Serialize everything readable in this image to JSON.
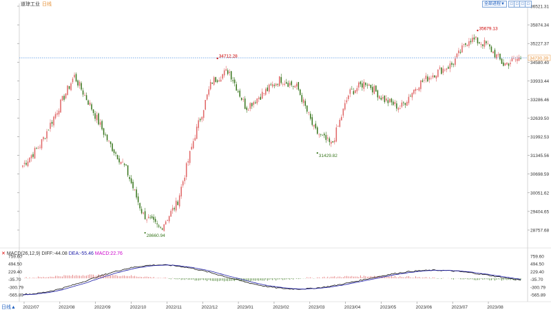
{
  "header": {
    "title": "道琼工业",
    "period_tag": "日线",
    "adjust_button": "全部进程▼",
    "toggle_buttons": [
      "□",
      "□",
      "□",
      "□"
    ]
  },
  "footer": {
    "period_label": "日线▲"
  },
  "indicator": {
    "label": "MACD(26,12,9)",
    "diff_text": "DIFF:-44.08",
    "dea_text": "DEA:-55.46",
    "macd_text": "MACD:22.76"
  },
  "colors": {
    "up": "#e06666",
    "down": "#38761d",
    "diff_line": "#111111",
    "dea_line": "#1c1ca8",
    "macd_label": "#cc00cc",
    "last_price_line": "#4a90e2",
    "high_annotation": "#cc0000",
    "low_annotation": "#38761d"
  },
  "chart_data": [
    {
      "type": "candlestick",
      "x_ticks": [
        "2022/07",
        "2022/08",
        "2022/09",
        "2022/10",
        "2022/11",
        "2022/12",
        "2023/01",
        "2023/02",
        "2023/03",
        "2023/04",
        "2023/05",
        "2023/06",
        "2023/07",
        "2023/08"
      ],
      "y_ticks": [
        "36521.31",
        "35874.34",
        "35227.37",
        "34580.40",
        "33933.44",
        "33286.46",
        "32639.50",
        "31992.53",
        "31345.56",
        "30698.59",
        "30051.62",
        "29404.65",
        "28757.68"
      ],
      "ylim": [
        28757.68,
        36521.31
      ],
      "last_price": "34730.39",
      "annotations": [
        {
          "label": "34712.28",
          "x": "2022/12",
          "y": 34712.28
        },
        {
          "label": "28660.94",
          "x": "2022/10",
          "y": 28660.94
        },
        {
          "label": "31429.82",
          "x": "2023/03",
          "y": 31429.82
        },
        {
          "label": "35679.13",
          "x": "2023/08",
          "y": 35679.13
        }
      ],
      "anchors": [
        {
          "x": "2022/07",
          "y": 31000
        },
        {
          "x": "2022/07",
          "y": 31700
        },
        {
          "x": "2022/08",
          "y": 32900
        },
        {
          "x": "2022/08",
          "y": 34100
        },
        {
          "x": "2022/08",
          "y": 33000
        },
        {
          "x": "2022/09",
          "y": 31800
        },
        {
          "x": "2022/09",
          "y": 30900
        },
        {
          "x": "2022/09",
          "y": 29300
        },
        {
          "x": "2022/10",
          "y": 28800
        },
        {
          "x": "2022/10",
          "y": 29700
        },
        {
          "x": "2022/11",
          "y": 32000
        },
        {
          "x": "2022/11",
          "y": 33900
        },
        {
          "x": "2022/12",
          "y": 34300
        },
        {
          "x": "2022/12",
          "y": 33000
        },
        {
          "x": "2023/01",
          "y": 33500
        },
        {
          "x": "2023/02",
          "y": 34000
        },
        {
          "x": "2023/02",
          "y": 33700
        },
        {
          "x": "2023/03",
          "y": 32200
        },
        {
          "x": "2023/03",
          "y": 31700
        },
        {
          "x": "2023/04",
          "y": 33500
        },
        {
          "x": "2023/04",
          "y": 33900
        },
        {
          "x": "2023/05",
          "y": 33300
        },
        {
          "x": "2023/05",
          "y": 33000
        },
        {
          "x": "2023/06",
          "y": 33800
        },
        {
          "x": "2023/06",
          "y": 34200
        },
        {
          "x": "2023/07",
          "y": 34500
        },
        {
          "x": "2023/07",
          "y": 35400
        },
        {
          "x": "2023/08",
          "y": 35200
        },
        {
          "x": "2023/08",
          "y": 34500
        },
        {
          "x": "2023/08",
          "y": 34730
        }
      ]
    },
    {
      "type": "macd",
      "title": "MACD(26,12,9)",
      "y_ticks": [
        "759.60",
        "494.50",
        "229.40",
        "-35.70",
        "-300.79",
        "-565.89"
      ],
      "ylim": [
        -565.89,
        759.6
      ],
      "series": [
        {
          "name": "DIFF",
          "last_value": -44.08
        },
        {
          "name": "DEA",
          "last_value": -55.46
        },
        {
          "name": "MACD",
          "last_value": 22.76
        }
      ]
    }
  ]
}
